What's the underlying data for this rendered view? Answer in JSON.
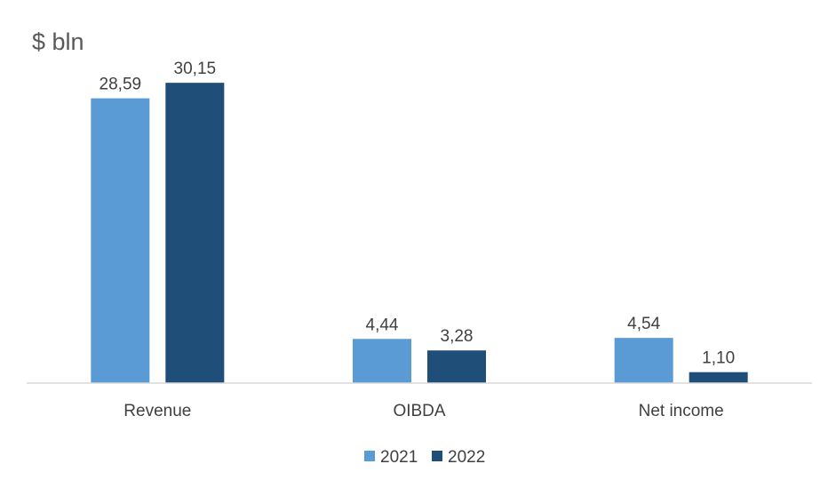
{
  "chart_data": {
    "type": "bar",
    "title": "$ bln",
    "xlabel": "",
    "ylabel": "",
    "categories": [
      "Revenue",
      "OIBDA",
      "Net income"
    ],
    "series": [
      {
        "name": "2021",
        "color": "#5B9BD5",
        "values": [
          28.59,
          4.44,
          4.54
        ],
        "labels": [
          "28,59",
          "4,44",
          "4,54"
        ]
      },
      {
        "name": "2022",
        "color": "#1F4E79",
        "values": [
          30.15,
          3.28,
          1.1
        ],
        "labels": [
          "30,15",
          "3,28",
          "1,10"
        ]
      }
    ],
    "ylim": [
      0,
      34
    ],
    "grid": false,
    "legend_position": "bottom",
    "axis_color": "#D9D9D9"
  }
}
